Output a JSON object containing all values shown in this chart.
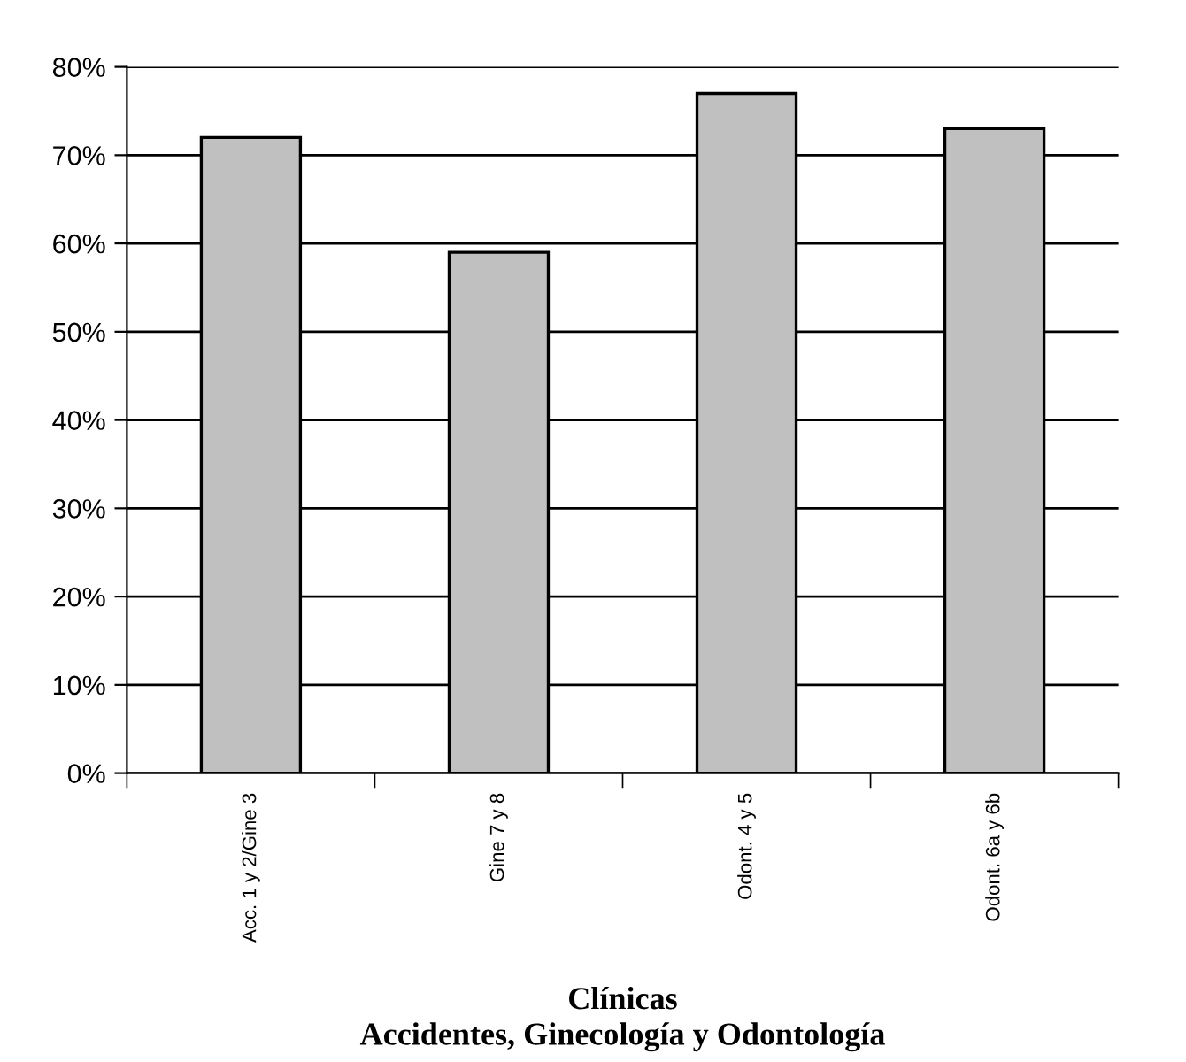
{
  "chart_data": {
    "type": "bar",
    "xlabel": "Clínicas\nAccidentes, Ginecología y Odontología",
    "categories": [
      "Acc. 1 y 2/Gine 3",
      "Gine 7 y 8",
      "Odont. 4 y 5",
      "Odont. 6a y 6b"
    ],
    "values": [
      72,
      59,
      77,
      73
    ],
    "color": "#c0c0c0",
    "ylim": [
      0,
      80
    ],
    "yticks": [
      {
        "value": 0,
        "label": "0%"
      },
      {
        "value": 10,
        "label": "10%"
      },
      {
        "value": 20,
        "label": "20%"
      },
      {
        "value": 30,
        "label": "30%"
      },
      {
        "value": 40,
        "label": "40%"
      },
      {
        "value": 50,
        "label": "50%"
      },
      {
        "value": 60,
        "label": "60%"
      },
      {
        "value": 70,
        "label": "70%"
      },
      {
        "value": 80,
        "label": "80%"
      }
    ],
    "grid": "y"
  }
}
